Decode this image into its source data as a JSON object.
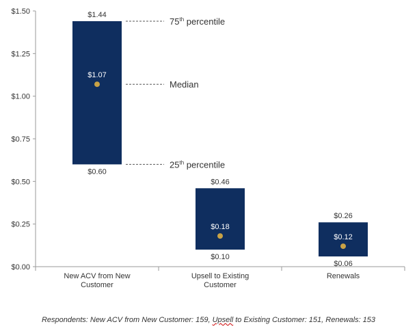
{
  "chart_data": {
    "type": "box-range",
    "title": "",
    "xlabel": "",
    "ylabel": "",
    "ylim": [
      0,
      1.5
    ],
    "yticks": [
      0,
      0.25,
      0.5,
      0.75,
      1.0,
      1.25,
      1.5
    ],
    "ytick_labels": [
      "$0.00",
      "$0.25",
      "$0.50",
      "$0.75",
      "$1.00",
      "$1.25",
      "$1.50"
    ],
    "categories": [
      {
        "line1": "New ACV from New",
        "line2": "Customer"
      },
      {
        "line1": "Upsell to Existing",
        "line2": "Customer"
      },
      {
        "line1": "Renewals",
        "line2": ""
      }
    ],
    "series": [
      {
        "name": "75th percentile",
        "values": [
          1.44,
          0.46,
          0.26
        ],
        "labels": [
          "$1.44",
          "$0.46",
          "$0.26"
        ]
      },
      {
        "name": "Median",
        "values": [
          1.07,
          0.18,
          0.12
        ],
        "labels": [
          "$1.07",
          "$0.18",
          "$0.12"
        ]
      },
      {
        "name": "25th percentile",
        "values": [
          0.6,
          0.1,
          0.06
        ],
        "labels": [
          "$0.60",
          "$0.10",
          "$0.06"
        ]
      }
    ],
    "annotations": {
      "p75": {
        "base": "75",
        "sup": "th",
        "rest": " percentile"
      },
      "median": "Median",
      "p25": {
        "base": "25",
        "sup": "th",
        "rest": " percentile"
      }
    },
    "colors": {
      "box": "#0f2e5f",
      "median_dot": "#c8a246",
      "axis": "#9a9a9a",
      "text": "#333333",
      "box_text": "#ffffff"
    }
  },
  "footnote": {
    "prefix": "Respondents: New ACV from New Customer: 159, ",
    "misspelled": "Upsell",
    "suffix": " to Existing Customer: 151, Renewals: 153"
  }
}
